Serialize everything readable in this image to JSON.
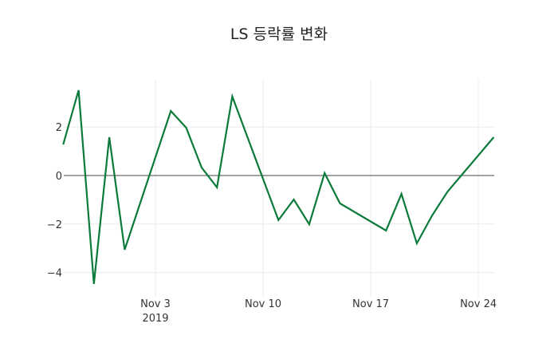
{
  "chart_data": {
    "type": "line",
    "title": "LS 등락률 변화",
    "xlabel": "",
    "ylabel": "",
    "x": [
      "2019-10-28",
      "2019-10-29",
      "2019-10-30",
      "2019-10-31",
      "2019-11-01",
      "2019-11-04",
      "2019-11-05",
      "2019-11-06",
      "2019-11-07",
      "2019-11-08",
      "2019-11-11",
      "2019-11-12",
      "2019-11-13",
      "2019-11-14",
      "2019-11-15",
      "2019-11-18",
      "2019-11-19",
      "2019-11-20",
      "2019-11-21",
      "2019-11-22",
      "2019-11-25"
    ],
    "series": [
      {
        "name": "등락률",
        "color": "#0b7a3a",
        "values": [
          1.28,
          3.52,
          -4.47,
          1.58,
          -3.06,
          2.66,
          1.97,
          0.33,
          -0.49,
          3.26,
          -1.84,
          -0.99,
          -2.01,
          0.1,
          -1.15,
          -2.27,
          -0.76,
          -2.8,
          -1.64,
          -0.66,
          1.58
        ]
      }
    ],
    "yticks": [
      {
        "value": 2,
        "label": "2"
      },
      {
        "value": 0,
        "label": "0"
      },
      {
        "value": -2,
        "label": "−2"
      },
      {
        "value": -4,
        "label": "−4"
      }
    ],
    "xticks": [
      {
        "date": "2019-11-03",
        "label": "Nov 3",
        "sublabel": "2019"
      },
      {
        "date": "2019-11-10",
        "label": "Nov 10",
        "sublabel": ""
      },
      {
        "date": "2019-11-17",
        "label": "Nov 17",
        "sublabel": ""
      },
      {
        "date": "2019-11-24",
        "label": "Nov 24",
        "sublabel": ""
      }
    ],
    "ylim": [
      -4.7,
      3.9
    ],
    "grid": true,
    "zeroline": true
  }
}
